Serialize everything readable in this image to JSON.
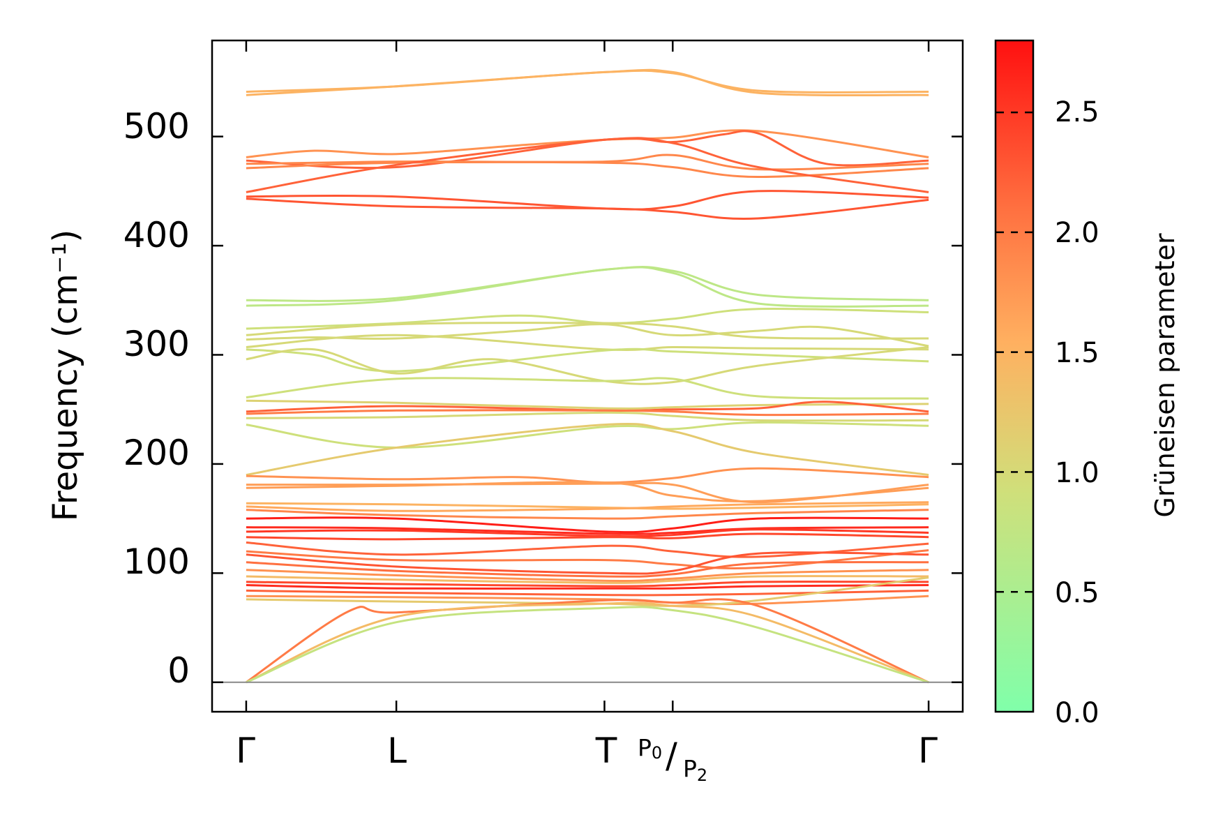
{
  "chart_data": {
    "type": "line",
    "title": "",
    "xlabel": "",
    "ylabel": "Frequency (cm⁻¹)",
    "ylim": [
      -27,
      588
    ],
    "yticks": [
      0,
      100,
      200,
      300,
      400,
      500
    ],
    "yticks_text": [
      "0",
      "100",
      "200",
      "300",
      "400",
      "500"
    ],
    "xlim": [
      -0.05,
      1.05
    ],
    "kpoints": [
      {
        "label": "Γ",
        "pos": 0.0
      },
      {
        "label": "L",
        "pos": 0.22
      },
      {
        "label": "T",
        "pos": 0.525
      },
      {
        "label_sup": "P",
        "label_sup_sub": "0",
        "label_sep": "/",
        "label_sub": "P",
        "label_sub_sub": "2",
        "pos": 0.625
      },
      {
        "label": "Γ",
        "pos": 1.0
      }
    ],
    "colorbar": {
      "label": "Grüneisen parameter",
      "range": [
        0.0,
        2.8
      ],
      "ticks": [
        0.0,
        0.5,
        1.0,
        1.5,
        2.0,
        2.5
      ],
      "ticks_text": [
        "0.0",
        "0.5",
        "1.0",
        "1.5",
        "2.0",
        "2.5"
      ],
      "colormap": [
        "#80ffaa",
        "#d0df7a",
        "#ffb060",
        "#ff7040",
        "#ff1010"
      ]
    },
    "zero_line": {
      "value": 0,
      "color": "#888888"
    },
    "series": [
      {
        "name": "b01",
        "x": [
          0,
          0.22,
          0.525,
          0.625,
          0.75,
          1.0
        ],
        "values": [
          541,
          546,
          559,
          558,
          542,
          541
        ],
        "gamma": 1.5
      },
      {
        "name": "b02",
        "x": [
          0,
          0.22,
          0.525,
          0.625,
          0.75,
          1.0
        ],
        "values": [
          538,
          546,
          559,
          559,
          540,
          538
        ],
        "gamma": 1.5
      },
      {
        "name": "b03",
        "x": [
          0,
          0.1,
          0.22,
          0.4,
          0.525,
          0.625,
          0.75,
          1.0
        ],
        "values": [
          481,
          487,
          484,
          492,
          497,
          499,
          505,
          481
        ],
        "gamma": 1.8
      },
      {
        "name": "b04",
        "x": [
          0,
          0.22,
          0.525,
          0.625,
          0.7,
          0.75,
          0.85,
          1.0
        ],
        "values": [
          478,
          472,
          497,
          495,
          502,
          503,
          475,
          478
        ],
        "gamma": 2.2
      },
      {
        "name": "b05",
        "x": [
          0,
          0.22,
          0.525,
          0.625,
          0.75,
          1.0
        ],
        "values": [
          475,
          477,
          477,
          483,
          470,
          475
        ],
        "gamma": 1.9
      },
      {
        "name": "b06",
        "x": [
          0,
          0.22,
          0.525,
          0.625,
          0.75,
          1.0
        ],
        "values": [
          471,
          476,
          476,
          472,
          463,
          471
        ],
        "gamma": 1.9
      },
      {
        "name": "b07",
        "x": [
          0,
          0.22,
          0.525,
          0.625,
          0.75,
          1.0
        ],
        "values": [
          449,
          474,
          497,
          494,
          472,
          449
        ],
        "gamma": 2.2
      },
      {
        "name": "b08",
        "x": [
          0,
          0.22,
          0.525,
          0.625,
          0.75,
          1.0
        ],
        "values": [
          445,
          445,
          434,
          436,
          450,
          444
        ],
        "gamma": 2.3
      },
      {
        "name": "b09",
        "x": [
          0,
          0.22,
          0.525,
          0.625,
          0.75,
          1.0
        ],
        "values": [
          443,
          436,
          434,
          431,
          425,
          442
        ],
        "gamma": 2.3
      },
      {
        "name": "b10",
        "x": [
          0,
          0.22,
          0.525,
          0.625,
          0.75,
          1.0
        ],
        "values": [
          350,
          352,
          378,
          377,
          355,
          350
        ],
        "gamma": 0.7
      },
      {
        "name": "b11",
        "x": [
          0,
          0.22,
          0.525,
          0.625,
          0.75,
          1.0
        ],
        "values": [
          345,
          350,
          378,
          375,
          347,
          345
        ],
        "gamma": 0.7
      },
      {
        "name": "b12",
        "x": [
          0,
          0.22,
          0.4,
          0.525,
          0.625,
          0.75,
          1.0
        ],
        "values": [
          324,
          329,
          336,
          329,
          333,
          342,
          339
        ],
        "gamma": 0.9
      },
      {
        "name": "b13",
        "x": [
          0,
          0.22,
          0.525,
          0.625,
          0.75,
          1.0
        ],
        "values": [
          318,
          328,
          329,
          326,
          316,
          315
        ],
        "gamma": 1.0
      },
      {
        "name": "b14",
        "x": [
          0,
          0.1,
          0.22,
          0.4,
          0.525,
          0.625,
          0.75,
          0.85,
          1.0
        ],
        "values": [
          314,
          316,
          315,
          322,
          328,
          318,
          322,
          325,
          308
        ],
        "gamma": 1.0
      },
      {
        "name": "b15",
        "x": [
          0,
          0.22,
          0.525,
          0.625,
          0.75,
          1.0
        ],
        "values": [
          307,
          318,
          305,
          307,
          306,
          305
        ],
        "gamma": 1.0
      },
      {
        "name": "b16",
        "x": [
          0,
          0.1,
          0.22,
          0.525,
          0.625,
          0.75,
          1.0
        ],
        "values": [
          305,
          300,
          285,
          304,
          303,
          300,
          294
        ],
        "gamma": 0.9
      },
      {
        "name": "b17",
        "x": [
          0,
          0.1,
          0.22,
          0.36,
          0.525,
          0.625,
          0.75,
          1.0
        ],
        "values": [
          296,
          305,
          283,
          296,
          276,
          275,
          290,
          307
        ],
        "gamma": 1.0
      },
      {
        "name": "b18",
        "x": [
          0,
          0.22,
          0.525,
          0.625,
          0.75,
          1.0
        ],
        "values": [
          261,
          278,
          276,
          278,
          262,
          260
        ],
        "gamma": 0.9
      },
      {
        "name": "b19",
        "x": [
          0,
          0.22,
          0.525,
          0.625,
          0.75,
          1.0
        ],
        "values": [
          258,
          256,
          251,
          252,
          254,
          255
        ],
        "gamma": 1.1
      },
      {
        "name": "b20",
        "x": [
          0,
          0.22,
          0.525,
          0.625,
          0.75,
          0.85,
          1.0
        ],
        "values": [
          248,
          253,
          249,
          250,
          251,
          257,
          248
        ],
        "gamma": 2.2
      },
      {
        "name": "b21",
        "x": [
          0,
          0.22,
          0.525,
          0.625,
          0.75,
          1.0
        ],
        "values": [
          246,
          249,
          249,
          248,
          245,
          246
        ],
        "gamma": 2.0
      },
      {
        "name": "b22",
        "x": [
          0,
          0.22,
          0.525,
          0.625,
          0.75,
          1.0
        ],
        "values": [
          242,
          243,
          247,
          244,
          240,
          240
        ],
        "gamma": 1.0
      },
      {
        "name": "b23",
        "x": [
          0,
          0.22,
          0.525,
          0.625,
          0.75,
          1.0
        ],
        "values": [
          236,
          215,
          234,
          232,
          238,
          235
        ],
        "gamma": 0.9
      },
      {
        "name": "b24",
        "x": [
          0,
          0.22,
          0.525,
          0.625,
          0.75,
          1.0
        ],
        "values": [
          190,
          215,
          236,
          230,
          210,
          190
        ],
        "gamma": 1.2
      },
      {
        "name": "b25",
        "x": [
          0,
          0.22,
          0.4,
          0.525,
          0.625,
          0.75,
          1.0
        ],
        "values": [
          189,
          186,
          188,
          183,
          187,
          196,
          188
        ],
        "gamma": 1.8
      },
      {
        "name": "b26",
        "x": [
          0,
          0.22,
          0.525,
          0.625,
          0.75,
          1.0
        ],
        "values": [
          181,
          181,
          182,
          181,
          165,
          181
        ],
        "gamma": 1.7
      },
      {
        "name": "b27",
        "x": [
          0,
          0.22,
          0.525,
          0.625,
          0.75,
          1.0
        ],
        "values": [
          178,
          180,
          183,
          171,
          166,
          178
        ],
        "gamma": 1.7
      },
      {
        "name": "b28",
        "x": [
          0,
          0.22,
          0.525,
          0.625,
          0.75,
          1.0
        ],
        "values": [
          164,
          163,
          160,
          159,
          160,
          163
        ],
        "gamma": 1.5
      },
      {
        "name": "b29",
        "x": [
          0,
          0.22,
          0.525,
          0.625,
          0.75,
          1.0
        ],
        "values": [
          161,
          157,
          159,
          161,
          163,
          165
        ],
        "gamma": 1.6
      },
      {
        "name": "b30",
        "x": [
          0,
          0.22,
          0.525,
          0.625,
          0.75,
          1.0
        ],
        "values": [
          158,
          153,
          150,
          152,
          155,
          158
        ],
        "gamma": 1.9
      },
      {
        "name": "b31",
        "x": [
          0,
          0.22,
          0.525,
          0.625,
          0.75,
          1.0
        ],
        "values": [
          150,
          150,
          138,
          141,
          150,
          150
        ],
        "gamma": 2.7
      },
      {
        "name": "b32",
        "x": [
          0,
          0.22,
          0.525,
          0.625,
          0.75,
          1.0
        ],
        "values": [
          142,
          141,
          136,
          137,
          141,
          142
        ],
        "gamma": 2.6
      },
      {
        "name": "b33",
        "x": [
          0,
          0.22,
          0.525,
          0.625,
          0.75,
          1.0
        ],
        "values": [
          138,
          139,
          134,
          135,
          140,
          137
        ],
        "gamma": 2.5
      },
      {
        "name": "b34",
        "x": [
          0,
          0.22,
          0.525,
          0.625,
          0.75,
          1.0
        ],
        "values": [
          133,
          131,
          133,
          132,
          136,
          133
        ],
        "gamma": 2.4
      },
      {
        "name": "b35",
        "x": [
          0,
          0.22,
          0.525,
          0.625,
          0.75,
          1.0
        ],
        "values": [
          128,
          117,
          125,
          120,
          115,
          127
        ],
        "gamma": 2.2
      },
      {
        "name": "b36",
        "x": [
          0,
          0.22,
          0.525,
          0.625,
          0.75,
          1.0
        ],
        "values": [
          120,
          112,
          112,
          108,
          105,
          121
        ],
        "gamma": 2.0
      },
      {
        "name": "b37",
        "x": [
          0,
          0.22,
          0.525,
          0.625,
          0.75,
          1.0
        ],
        "values": [
          117,
          106,
          100,
          102,
          118,
          117
        ],
        "gamma": 2.3
      },
      {
        "name": "b38",
        "x": [
          0,
          0.22,
          0.525,
          0.625,
          0.75,
          1.0
        ],
        "values": [
          110,
          102,
          97,
          99,
          109,
          110
        ],
        "gamma": 2.1
      },
      {
        "name": "b39",
        "x": [
          0,
          0.22,
          0.525,
          0.625,
          0.75,
          1.0
        ],
        "values": [
          103,
          98,
          93,
          95,
          100,
          103
        ],
        "gamma": 1.8
      },
      {
        "name": "b40",
        "x": [
          0,
          0.22,
          0.525,
          0.625,
          0.75,
          1.0
        ],
        "values": [
          97,
          94,
          91,
          93,
          97,
          97
        ],
        "gamma": 1.4
      },
      {
        "name": "b41",
        "x": [
          0,
          0.22,
          0.525,
          0.625,
          0.75,
          1.0
        ],
        "values": [
          92,
          90,
          88,
          89,
          92,
          92
        ],
        "gamma": 2.4
      },
      {
        "name": "b42",
        "x": [
          0,
          0.22,
          0.525,
          0.625,
          0.75,
          1.0
        ],
        "values": [
          89,
          86,
          86,
          86,
          88,
          89
        ],
        "gamma": 2.6
      },
      {
        "name": "b43",
        "x": [
          0,
          0.22,
          0.525,
          0.625,
          0.75,
          1.0
        ],
        "values": [
          84,
          82,
          80,
          80,
          81,
          84
        ],
        "gamma": 2.2
      },
      {
        "name": "b44",
        "x": [
          0,
          0.22,
          0.525,
          0.625,
          0.75,
          1.0
        ],
        "values": [
          79,
          78,
          76,
          73,
          72,
          79
        ],
        "gamma": 1.8
      },
      {
        "name": "b45",
        "x": [
          0,
          0.22,
          0.525,
          0.625,
          0.75,
          1.0
        ],
        "values": [
          76,
          74,
          72,
          70,
          75,
          96
        ],
        "gamma": 1.2
      },
      {
        "name": "b46",
        "x": [
          0,
          0.15,
          0.22,
          0.525,
          0.625,
          0.75,
          1.0
        ],
        "values": [
          0,
          65,
          64,
          75,
          73,
          70,
          0
        ],
        "gamma": 2.0
      },
      {
        "name": "b47",
        "x": [
          0,
          0.22,
          0.525,
          0.625,
          0.75,
          1.0
        ],
        "values": [
          0,
          60,
          72,
          70,
          60,
          0
        ],
        "gamma": 1.4
      },
      {
        "name": "b48",
        "x": [
          0,
          0.22,
          0.525,
          0.625,
          0.75,
          1.0
        ],
        "values": [
          0,
          55,
          68,
          66,
          50,
          0
        ],
        "gamma": 0.8
      }
    ]
  }
}
